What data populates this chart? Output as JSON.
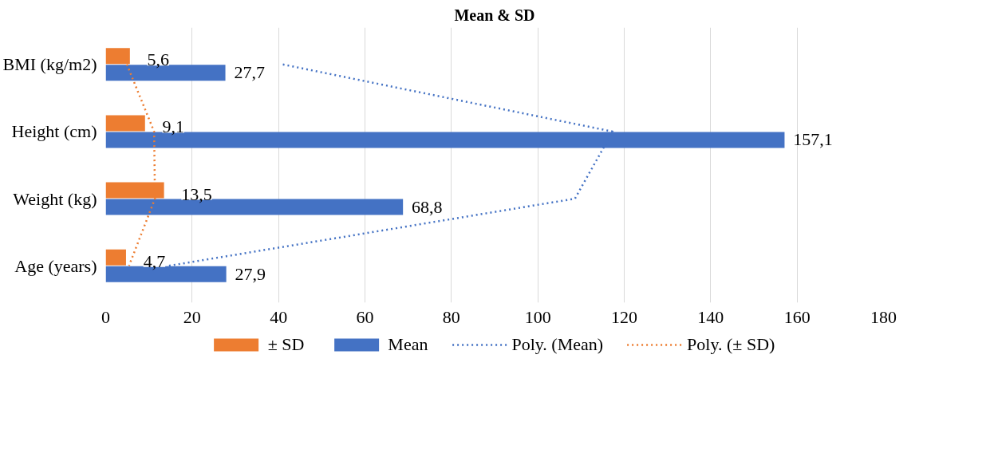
{
  "chart_data": {
    "type": "bar",
    "orientation": "horizontal",
    "title": "Mean & SD",
    "categories": [
      "BMI (kg/m2)",
      "Height (cm)",
      "Weight (kg)",
      "Age (years)"
    ],
    "series": [
      {
        "name": "± SD",
        "color": "#ed7d31",
        "values": [
          5.6,
          9.1,
          13.5,
          4.7
        ],
        "value_labels": [
          "5,6",
          "9,1",
          "13,5",
          "4,7"
        ]
      },
      {
        "name": "Mean",
        "color": "#4472c4",
        "values": [
          27.7,
          157.1,
          68.8,
          27.9
        ],
        "value_labels": [
          "27,7",
          "157,1",
          "68,8",
          "27,9"
        ]
      },
      {
        "name": "Poly. (Mean)",
        "type": "line",
        "line_style": "dotted",
        "color": "#4472c4",
        "values": [
          41.0,
          117.3,
          108.6,
          14.6
        ]
      },
      {
        "name": "Poly. (± SD)",
        "type": "line",
        "line_style": "dotted",
        "color": "#ed7d31",
        "values": [
          4.9,
          11.2,
          11.4,
          5.4
        ]
      }
    ],
    "xlim": [
      0,
      180
    ],
    "xticks": [
      0,
      20,
      40,
      60,
      80,
      100,
      120,
      140,
      160,
      180
    ],
    "grid": "x",
    "legend": "bottom"
  }
}
